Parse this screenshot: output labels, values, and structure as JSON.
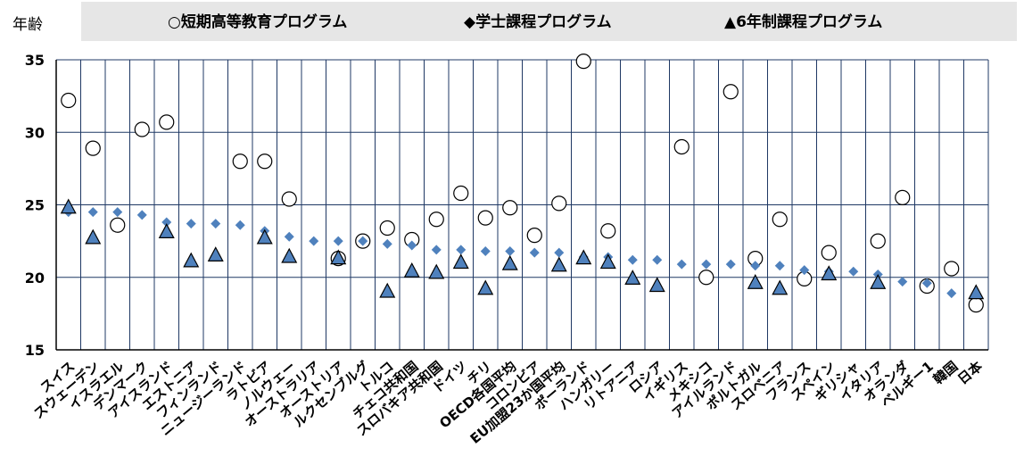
{
  "chart_data": {
    "type": "scatter",
    "ylabel": "年齢",
    "ylim": [
      15,
      35
    ],
    "yticks": [
      15,
      20,
      25,
      30,
      35
    ],
    "grid": true,
    "legend_position": "top",
    "categories": [
      "スイス",
      "スウェーデン",
      "イスラエル",
      "デンマーク",
      "アイスランド",
      "エストニア",
      "フィンランド",
      "ニュージーランド",
      "ラトビア",
      "ノルウェー",
      "オーストラリア",
      "オーストリア",
      "ルクセンブルグ",
      "トルコ",
      "チェコ共和国",
      "スロバキア共和国",
      "ドイツ",
      "チリ",
      "OECD各国平均",
      "コロンビア",
      "EU加盟23か国平均",
      "ポーランド",
      "ハンガリー",
      "リトアニア",
      "ロシア",
      "イギリス",
      "メキシコ",
      "アイルランド",
      "ポルトガル",
      "スロベニア",
      "フランス",
      "スペイン",
      "ギリシャ",
      "イタリア",
      "オランダ",
      "ベルギー1",
      "韓国",
      "日本"
    ],
    "series": [
      {
        "name": "○短期高等教育プログラム",
        "marker": "circle",
        "values": [
          32.2,
          28.9,
          23.6,
          30.2,
          30.7,
          null,
          null,
          28.0,
          28.0,
          25.4,
          null,
          21.3,
          22.5,
          23.4,
          22.6,
          24.0,
          25.8,
          24.1,
          24.8,
          22.9,
          25.1,
          34.9,
          23.2,
          null,
          null,
          29.0,
          20.0,
          32.8,
          21.3,
          24.0,
          19.9,
          21.7,
          null,
          22.5,
          25.5,
          19.4,
          20.6,
          18.1
        ]
      },
      {
        "name": "◆学士課程プログラム",
        "marker": "diamond",
        "values": [
          24.5,
          24.5,
          24.5,
          24.3,
          23.8,
          23.7,
          23.7,
          23.6,
          23.2,
          22.8,
          22.5,
          22.5,
          22.5,
          22.3,
          22.2,
          21.9,
          21.9,
          21.8,
          21.8,
          21.7,
          21.7,
          21.4,
          21.4,
          21.2,
          21.2,
          20.9,
          20.9,
          20.9,
          20.8,
          20.8,
          20.5,
          20.4,
          20.4,
          20.2,
          19.7,
          19.6,
          18.9,
          18.8
        ]
      },
      {
        "name": "▲6年制課程プログラム",
        "marker": "triangle",
        "values": [
          24.8,
          22.7,
          null,
          null,
          23.1,
          21.1,
          21.5,
          null,
          22.7,
          21.4,
          null,
          21.3,
          null,
          19.0,
          20.4,
          20.3,
          21.0,
          19.2,
          20.9,
          null,
          20.8,
          21.3,
          21.0,
          19.9,
          19.4,
          null,
          null,
          null,
          19.6,
          19.2,
          null,
          20.2,
          null,
          19.6,
          null,
          null,
          null,
          18.9
        ]
      }
    ],
    "colors": {
      "diamond": "#4f81bd",
      "triangle": "#4f81bd",
      "circle_fill": "#ffffff",
      "stroke": "#000000",
      "grid": "#1f3864"
    }
  }
}
